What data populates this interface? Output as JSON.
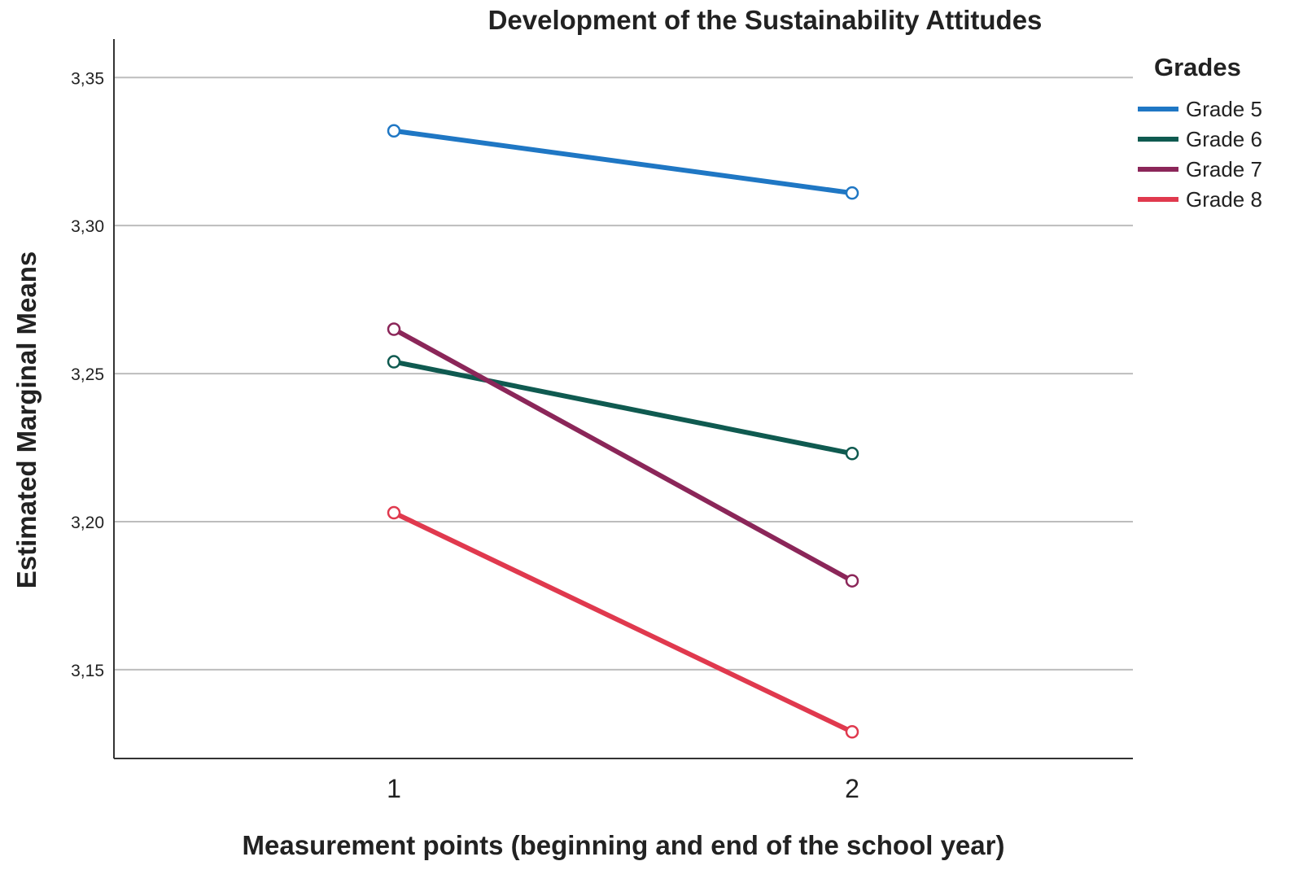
{
  "chart_data": {
    "type": "line",
    "title": "Development of the Sustainability Attitudes",
    "xlabel": "Measurement points (beginning and end of the school year)",
    "ylabel": "Estimated Marginal Means",
    "x": [
      1,
      2
    ],
    "x_tick_labels": [
      "1",
      "2"
    ],
    "ylim": [
      3.12,
      3.363
    ],
    "y_ticks": [
      3.15,
      3.2,
      3.25,
      3.3,
      3.35
    ],
    "y_tick_labels": [
      "3,15",
      "3,20",
      "3,25",
      "3,30",
      "3,35"
    ],
    "grid": "horizontal",
    "legend_title": "Grades",
    "legend_position": "right",
    "series": [
      {
        "name": "Grade 5",
        "color": "#1f77c4",
        "values": [
          3.332,
          3.311
        ]
      },
      {
        "name": "Grade 6",
        "color": "#0f5a50",
        "values": [
          3.254,
          3.223
        ]
      },
      {
        "name": "Grade 7",
        "color": "#8b2659",
        "values": [
          3.265,
          3.18
        ]
      },
      {
        "name": "Grade 8",
        "color": "#e0394e",
        "values": [
          3.203,
          3.129
        ]
      }
    ]
  }
}
